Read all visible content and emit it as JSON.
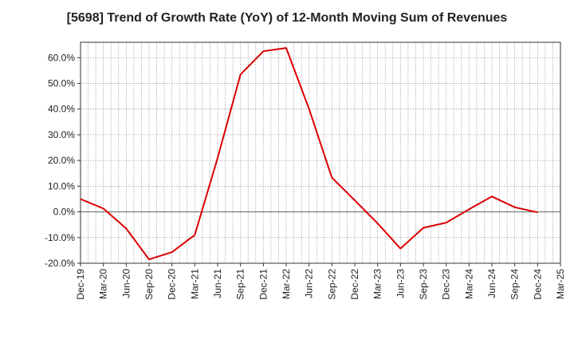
{
  "chart_data": {
    "type": "line",
    "title": "[5698]  Trend of Growth Rate (YoY) of 12-Month Moving Sum of Revenues",
    "xlabel": "",
    "ylabel": "",
    "ylim": [
      -20,
      66
    ],
    "yticks": [
      -20,
      -10,
      0,
      10,
      20,
      30,
      40,
      50,
      60
    ],
    "ytick_labels": [
      "-20.0%",
      "-10.0%",
      "0.0%",
      "10.0%",
      "20.0%",
      "30.0%",
      "40.0%",
      "50.0%",
      "60.0%"
    ],
    "xtick_labels": [
      "Dec-19",
      "Mar-20",
      "Jun-20",
      "Sep-20",
      "Dec-20",
      "Mar-21",
      "Jun-21",
      "Sep-21",
      "Dec-21",
      "Mar-22",
      "Jun-22",
      "Sep-22",
      "Dec-22",
      "Mar-23",
      "Jun-23",
      "Sep-23",
      "Dec-23",
      "Mar-24",
      "Jun-24",
      "Sep-24",
      "Dec-24",
      "Mar-25"
    ],
    "grid": true,
    "line_color": "#dd0000",
    "series": [
      {
        "x": [
          "Dec-19",
          "Mar-20",
          "Jun-20",
          "Sep-20",
          "Dec-20",
          "Mar-21",
          "Jun-21",
          "Sep-21",
          "Dec-21",
          "Mar-22",
          "Jun-22",
          "Sep-22",
          "Dec-22",
          "Mar-23",
          "Jun-23",
          "Sep-23",
          "Dec-23",
          "Mar-24",
          "Jun-24",
          "Sep-24",
          "Dec-24"
        ],
        "values": [
          5.0,
          1.3,
          -6.5,
          -18.5,
          -15.7,
          -9.0,
          21.0,
          53.5,
          62.5,
          63.8,
          40.0,
          13.3,
          4.5,
          -4.5,
          -14.3,
          -6.2,
          -4.2,
          1.0,
          6.0,
          1.8,
          -0.2
        ]
      }
    ]
  }
}
